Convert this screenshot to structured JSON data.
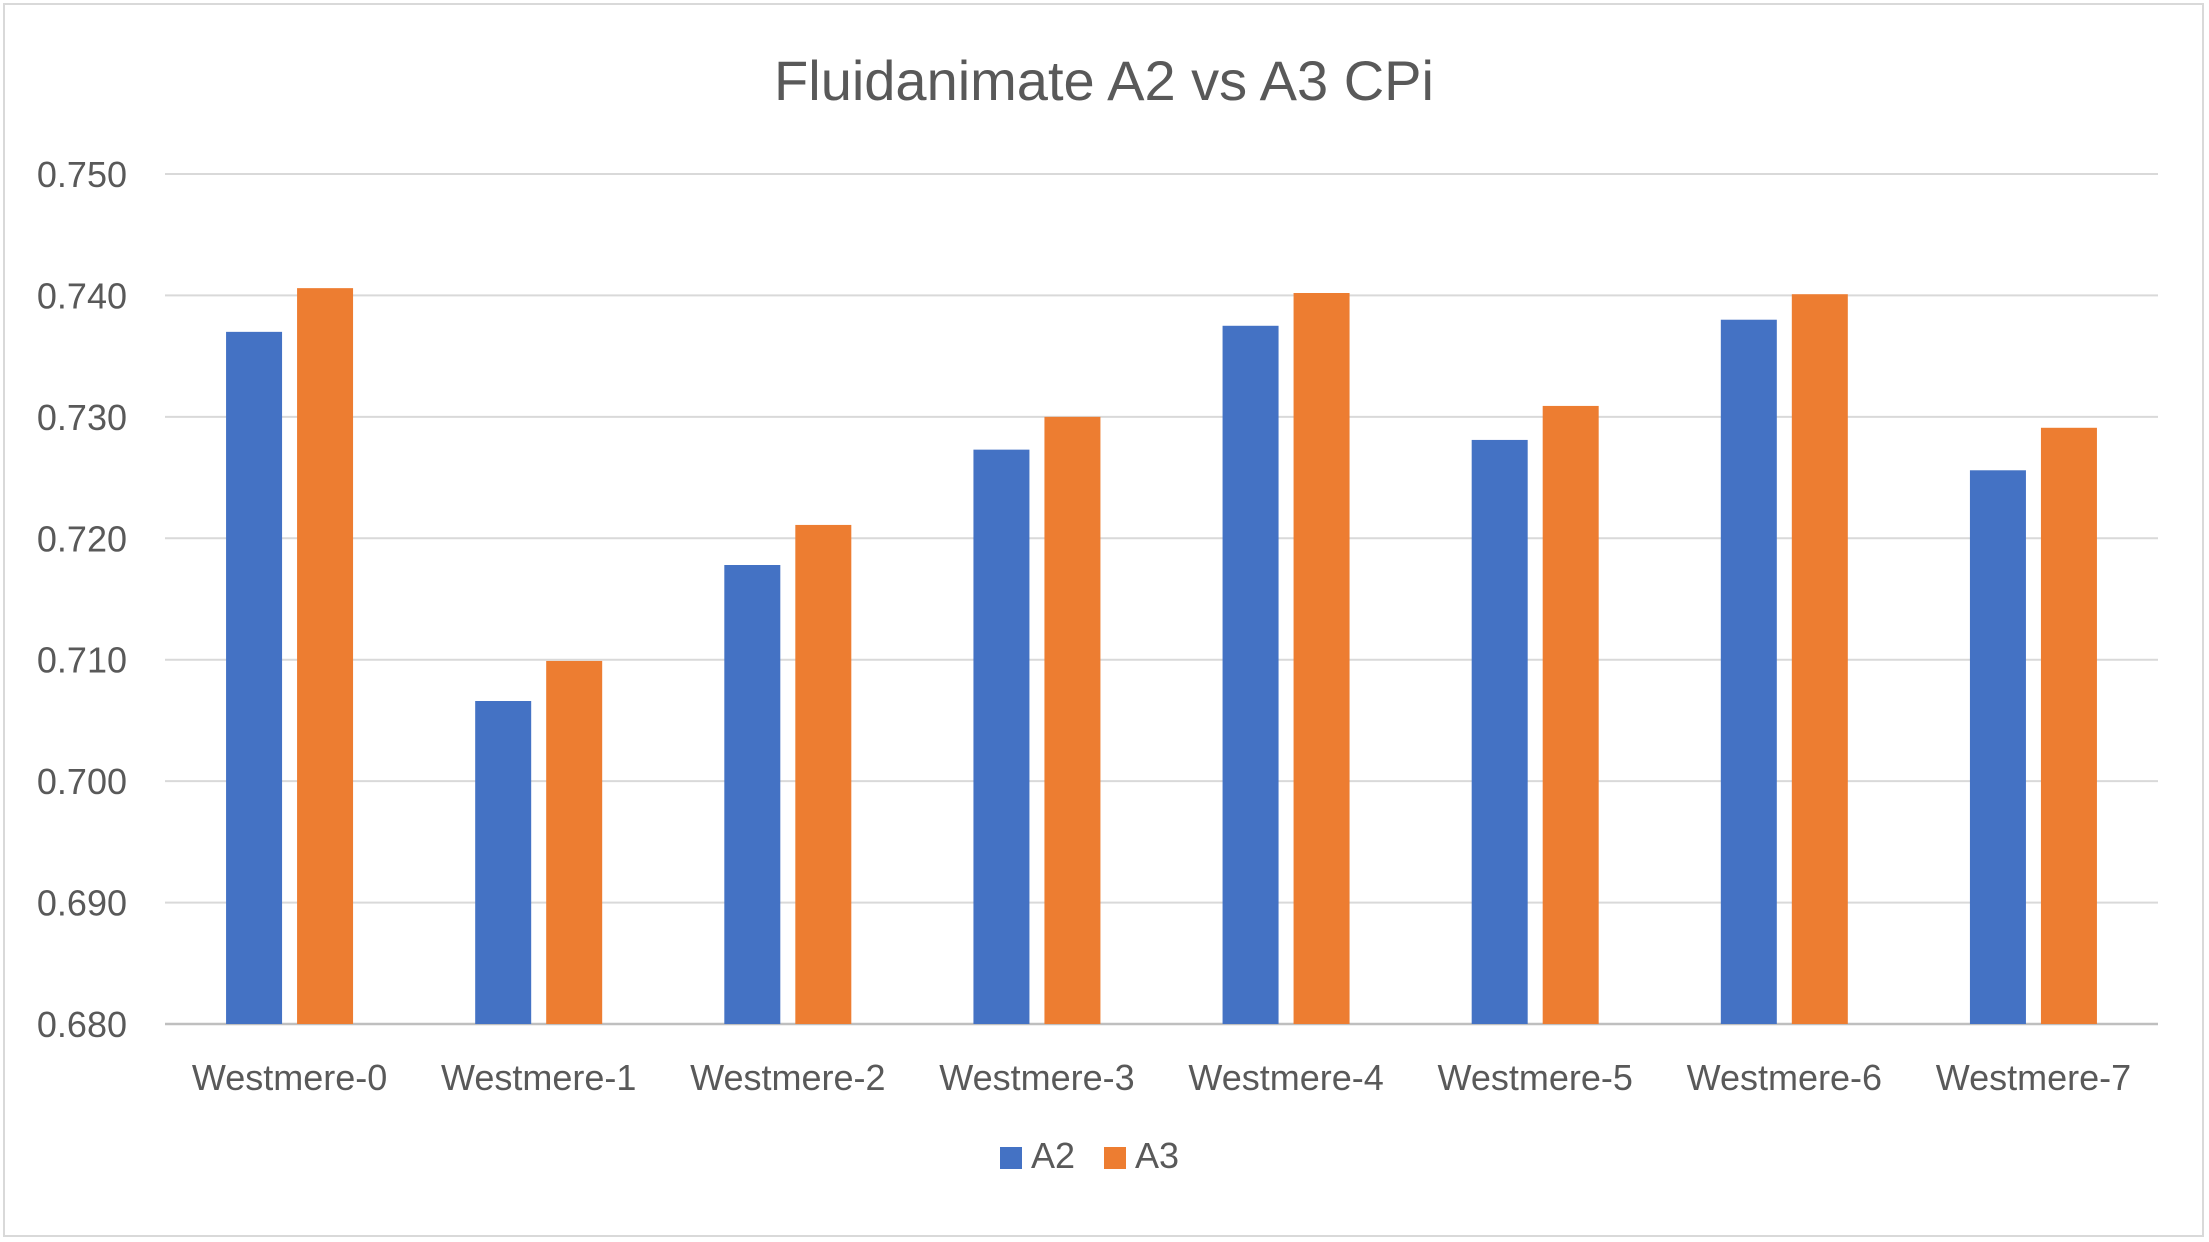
{
  "chart_data": {
    "type": "bar",
    "title": "Fluidanimate A2 vs A3 CPi",
    "xlabel": "",
    "ylabel": "",
    "categories": [
      "Westmere-0",
      "Westmere-1",
      "Westmere-2",
      "Westmere-3",
      "Westmere-4",
      "Westmere-5",
      "Westmere-6",
      "Westmere-7"
    ],
    "series": [
      {
        "name": "A2",
        "color": "#4472c4",
        "values": [
          0.737,
          0.7066,
          0.7178,
          0.7273,
          0.7375,
          0.7281,
          0.738,
          0.7256
        ]
      },
      {
        "name": "A3",
        "color": "#ed7d31",
        "values": [
          0.7406,
          0.7099,
          0.7211,
          0.73,
          0.7402,
          0.7309,
          0.7401,
          0.7291
        ]
      }
    ],
    "ylim": [
      0.68,
      0.75
    ],
    "yticks": [
      "0.680",
      "0.690",
      "0.700",
      "0.710",
      "0.720",
      "0.730",
      "0.740",
      "0.750"
    ],
    "grid": true,
    "legend_position": "bottom-center"
  }
}
